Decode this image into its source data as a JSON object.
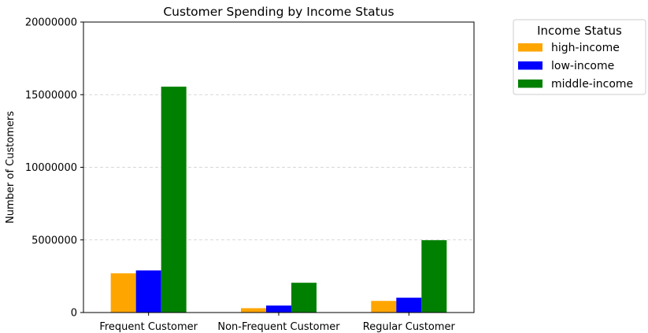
{
  "chart_data": {
    "type": "bar",
    "title": "Customer Spending by Income Status",
    "xlabel": "",
    "ylabel": "Number of Customers",
    "ylim": [
      0,
      20000000
    ],
    "yticks": [
      0,
      5000000,
      10000000,
      15000000,
      20000000
    ],
    "ytick_labels": [
      "0",
      "5000000",
      "10000000",
      "15000000",
      "20000000"
    ],
    "grid": "y-dashed",
    "categories": [
      "Frequent Customer",
      "Non-Frequent Customer",
      "Regular Customer"
    ],
    "series": [
      {
        "name": "high-income",
        "color": "#FFA500",
        "values": [
          2700000,
          300000,
          800000
        ]
      },
      {
        "name": "low-income",
        "color": "#0000FF",
        "values": [
          2900000,
          480000,
          1020000
        ]
      },
      {
        "name": "middle-income",
        "color": "#008000",
        "values": [
          15550000,
          2050000,
          4980000
        ]
      }
    ],
    "legend": {
      "title": "Income Status",
      "placement": "outside-top-right"
    }
  }
}
